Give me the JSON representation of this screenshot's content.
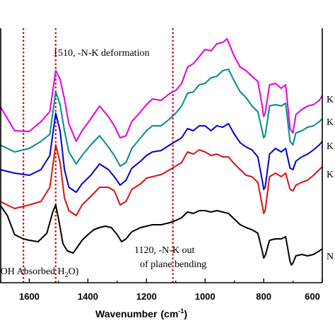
{
  "chart_data": {
    "type": "line",
    "xlabel": "Wavenumber",
    "xlabel_unit": "(cm",
    "xlabel_sup": "-1",
    "xlabel_close": ")",
    "xlim": [
      1700,
      600
    ],
    "x_reversed": true,
    "x_ticks": [
      1600,
      1400,
      1200,
      1000,
      800,
      600
    ],
    "x_tick_labels": [
      "1600",
      "1400",
      "1200",
      "1000",
      "800",
      "600"
    ],
    "reference_lines": [
      {
        "x": 1620,
        "color": "#cc0000"
      },
      {
        "x": 1510,
        "color": "#cc0000"
      },
      {
        "x": 1110,
        "color": "#cc0000"
      }
    ],
    "annotations": [
      {
        "text": "1510, -N-K deformation"
      },
      {
        "text": "1120, -N-K out"
      },
      {
        "text": "of  plane bending"
      },
      {
        "text": "-OH Absorbed H",
        "sub": "2",
        "tail": "O)"
      }
    ],
    "series": [
      {
        "name": "K",
        "color": "#e000e0",
        "points": [
          [
            1700,
            150
          ],
          [
            1650,
            185
          ],
          [
            1600,
            186
          ],
          [
            1560,
            172
          ],
          [
            1530,
            158
          ],
          [
            1510,
            100
          ],
          [
            1495,
            112
          ],
          [
            1480,
            140
          ],
          [
            1465,
            175
          ],
          [
            1440,
            200
          ],
          [
            1420,
            185
          ],
          [
            1390,
            168
          ],
          [
            1360,
            150
          ],
          [
            1330,
            165
          ],
          [
            1310,
            178
          ],
          [
            1290,
            195
          ],
          [
            1270,
            192
          ],
          [
            1250,
            172
          ],
          [
            1220,
            158
          ],
          [
            1200,
            148
          ],
          [
            1180,
            140
          ],
          [
            1150,
            142
          ],
          [
            1120,
            132
          ],
          [
            1100,
            128
          ],
          [
            1080,
            118
          ],
          [
            1060,
            95
          ],
          [
            1040,
            90
          ],
          [
            1020,
            80
          ],
          [
            1000,
            70
          ],
          [
            980,
            72
          ],
          [
            960,
            62
          ],
          [
            940,
            60
          ],
          [
            925,
            55
          ],
          [
            900,
            80
          ],
          [
            880,
            95
          ],
          [
            860,
            100
          ],
          [
            840,
            108
          ],
          [
            820,
            115
          ],
          [
            805,
            150
          ],
          [
            800,
            165
          ],
          [
            795,
            160
          ],
          [
            780,
            120
          ],
          [
            760,
            118
          ],
          [
            740,
            125
          ],
          [
            725,
            120
          ],
          [
            710,
            182
          ],
          [
            700,
            188
          ],
          [
            690,
            162
          ],
          [
            670,
            155
          ],
          [
            650,
            150
          ],
          [
            630,
            148
          ],
          [
            610,
            142
          ],
          [
            600,
            135
          ]
        ]
      },
      {
        "name": "K",
        "color": "#008b8b",
        "points": [
          [
            1700,
            205
          ],
          [
            1650,
            215
          ],
          [
            1600,
            210
          ],
          [
            1560,
            200
          ],
          [
            1530,
            190
          ],
          [
            1510,
            130
          ],
          [
            1495,
            148
          ],
          [
            1480,
            185
          ],
          [
            1465,
            215
          ],
          [
            1440,
            232
          ],
          [
            1420,
            220
          ],
          [
            1390,
            205
          ],
          [
            1360,
            192
          ],
          [
            1330,
            208
          ],
          [
            1310,
            220
          ],
          [
            1290,
            235
          ],
          [
            1270,
            230
          ],
          [
            1250,
            210
          ],
          [
            1220,
            195
          ],
          [
            1200,
            185
          ],
          [
            1180,
            178
          ],
          [
            1150,
            178
          ],
          [
            1120,
            168
          ],
          [
            1100,
            160
          ],
          [
            1080,
            150
          ],
          [
            1060,
            132
          ],
          [
            1040,
            130
          ],
          [
            1020,
            120
          ],
          [
            1000,
            118
          ],
          [
            980,
            110
          ],
          [
            960,
            108
          ],
          [
            940,
            100
          ],
          [
            920,
            98
          ],
          [
            900,
            115
          ],
          [
            880,
            130
          ],
          [
            860,
            138
          ],
          [
            840,
            150
          ],
          [
            820,
            158
          ],
          [
            805,
            185
          ],
          [
            800,
            195
          ],
          [
            795,
            192
          ],
          [
            780,
            150
          ],
          [
            760,
            148
          ],
          [
            740,
            150
          ],
          [
            725,
            146
          ],
          [
            710,
            200
          ],
          [
            700,
            205
          ],
          [
            690,
            188
          ],
          [
            670,
            185
          ],
          [
            650,
            180
          ],
          [
            630,
            178
          ],
          [
            610,
            172
          ],
          [
            600,
            168
          ]
        ]
      },
      {
        "name": "K",
        "color": "#0000cc",
        "points": [
          [
            1700,
            240
          ],
          [
            1650,
            245
          ],
          [
            1600,
            248
          ],
          [
            1560,
            240
          ],
          [
            1530,
            220
          ],
          [
            1510,
            160
          ],
          [
            1495,
            185
          ],
          [
            1480,
            240
          ],
          [
            1465,
            265
          ],
          [
            1440,
            272
          ],
          [
            1420,
            260
          ],
          [
            1390,
            248
          ],
          [
            1360,
            232
          ],
          [
            1330,
            240
          ],
          [
            1310,
            250
          ],
          [
            1290,
            262
          ],
          [
            1270,
            255
          ],
          [
            1250,
            238
          ],
          [
            1220,
            228
          ],
          [
            1200,
            220
          ],
          [
            1180,
            215
          ],
          [
            1150,
            213
          ],
          [
            1120,
            205
          ],
          [
            1100,
            200
          ],
          [
            1080,
            195
          ],
          [
            1060,
            182
          ],
          [
            1040,
            185
          ],
          [
            1020,
            178
          ],
          [
            1000,
            178
          ],
          [
            980,
            185
          ],
          [
            960,
            178
          ],
          [
            940,
            180
          ],
          [
            920,
            175
          ],
          [
            900,
            190
          ],
          [
            880,
            202
          ],
          [
            860,
            208
          ],
          [
            840,
            212
          ],
          [
            820,
            222
          ],
          [
            805,
            255
          ],
          [
            800,
            268
          ],
          [
            795,
            265
          ],
          [
            780,
            218
          ],
          [
            760,
            210
          ],
          [
            740,
            215
          ],
          [
            725,
            210
          ],
          [
            710,
            238
          ],
          [
            700,
            240
          ],
          [
            690,
            228
          ],
          [
            670,
            222
          ],
          [
            650,
            218
          ],
          [
            630,
            212
          ],
          [
            610,
            205
          ],
          [
            600,
            200
          ]
        ]
      },
      {
        "name": "K",
        "color": "#dd1111",
        "points": [
          [
            1700,
            285
          ],
          [
            1650,
            295
          ],
          [
            1600,
            290
          ],
          [
            1560,
            285
          ],
          [
            1530,
            265
          ],
          [
            1510,
            205
          ],
          [
            1495,
            230
          ],
          [
            1480,
            280
          ],
          [
            1465,
            298
          ],
          [
            1440,
            305
          ],
          [
            1420,
            290
          ],
          [
            1390,
            278
          ],
          [
            1360,
            265
          ],
          [
            1330,
            265
          ],
          [
            1310,
            270
          ],
          [
            1290,
            290
          ],
          [
            1270,
            285
          ],
          [
            1250,
            268
          ],
          [
            1220,
            260
          ],
          [
            1200,
            252
          ],
          [
            1180,
            250
          ],
          [
            1150,
            247
          ],
          [
            1120,
            240
          ],
          [
            1100,
            235
          ],
          [
            1080,
            230
          ],
          [
            1060,
            215
          ],
          [
            1040,
            218
          ],
          [
            1020,
            212
          ],
          [
            1000,
            215
          ],
          [
            980,
            220
          ],
          [
            960,
            218
          ],
          [
            940,
            222
          ],
          [
            920,
            222
          ],
          [
            900,
            232
          ],
          [
            880,
            240
          ],
          [
            860,
            248
          ],
          [
            840,
            250
          ],
          [
            820,
            258
          ],
          [
            805,
            290
          ],
          [
            800,
            302
          ],
          [
            795,
            298
          ],
          [
            780,
            250
          ],
          [
            760,
            245
          ],
          [
            740,
            250
          ],
          [
            725,
            245
          ],
          [
            710,
            268
          ],
          [
            700,
            270
          ],
          [
            690,
            262
          ],
          [
            670,
            258
          ],
          [
            650,
            255
          ],
          [
            630,
            248
          ],
          [
            610,
            240
          ],
          [
            600,
            236
          ]
        ]
      },
      {
        "name": "N",
        "color": "#000000",
        "points": [
          [
            1700,
            290
          ],
          [
            1675,
            305
          ],
          [
            1650,
            332
          ],
          [
            1620,
            338
          ],
          [
            1600,
            340
          ],
          [
            1570,
            342
          ],
          [
            1540,
            330
          ],
          [
            1520,
            300
          ],
          [
            1510,
            290
          ],
          [
            1500,
            310
          ],
          [
            1485,
            345
          ],
          [
            1470,
            355
          ],
          [
            1450,
            358
          ],
          [
            1440,
            352
          ],
          [
            1420,
            340
          ],
          [
            1400,
            332
          ],
          [
            1380,
            325
          ],
          [
            1360,
            322
          ],
          [
            1340,
            320
          ],
          [
            1320,
            322
          ],
          [
            1300,
            332
          ],
          [
            1285,
            342
          ],
          [
            1270,
            338
          ],
          [
            1250,
            328
          ],
          [
            1220,
            322
          ],
          [
            1200,
            320
          ],
          [
            1180,
            318
          ],
          [
            1150,
            318
          ],
          [
            1120,
            315
          ],
          [
            1100,
            312
          ],
          [
            1080,
            308
          ],
          [
            1060,
            300
          ],
          [
            1040,
            302
          ],
          [
            1020,
            298
          ],
          [
            1000,
            298
          ],
          [
            980,
            300
          ],
          [
            960,
            298
          ],
          [
            940,
            300
          ],
          [
            920,
            302
          ],
          [
            900,
            310
          ],
          [
            880,
            318
          ],
          [
            860,
            322
          ],
          [
            840,
            325
          ],
          [
            820,
            330
          ],
          [
            805,
            355
          ],
          [
            800,
            365
          ],
          [
            795,
            362
          ],
          [
            780,
            340
          ],
          [
            760,
            338
          ],
          [
            740,
            338
          ],
          [
            725,
            335
          ],
          [
            710,
            370
          ],
          [
            705,
            375
          ],
          [
            700,
            372
          ],
          [
            690,
            362
          ],
          [
            670,
            360
          ],
          [
            650,
            362
          ],
          [
            630,
            360
          ],
          [
            610,
            355
          ],
          [
            600,
            352
          ]
        ]
      }
    ]
  }
}
